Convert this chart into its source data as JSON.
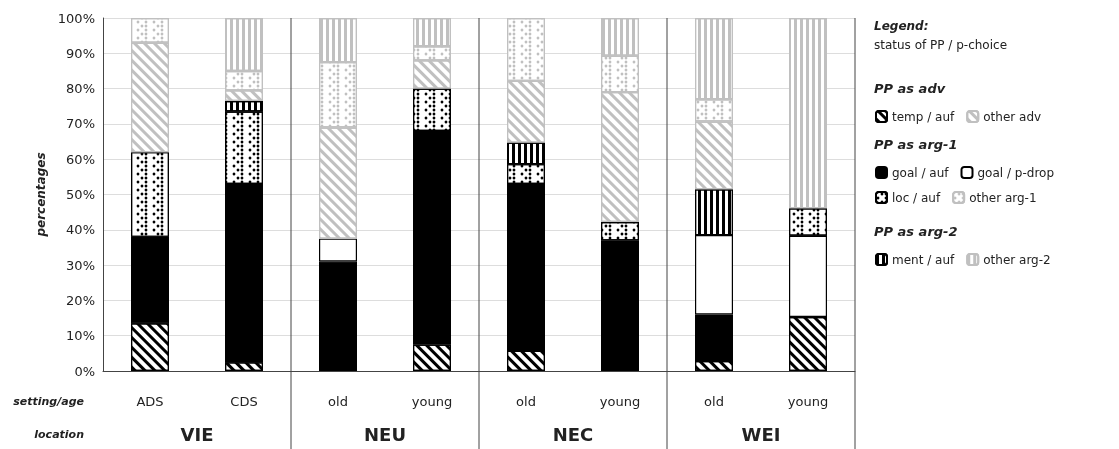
{
  "chart_data": {
    "type": "bar",
    "stacked": true,
    "categories": [
      "ADS",
      "CDS",
      "old",
      "young",
      "old",
      "young",
      "old",
      "young"
    ],
    "ylabel": "percentages",
    "legend_title": "Legend:",
    "annotations": [
      "setting/age",
      "location",
      "VIE",
      "NEU",
      "NEC",
      "WEI",
      "status of PP / p-choice",
      "PP as adv",
      "PP as arg-1",
      "PP as arg-2"
    ],
    "ylim": [
      0,
      100
    ],
    "yticks": [
      {
        "value": 0,
        "label": "0%"
      },
      {
        "value": 10,
        "label": "10%"
      },
      {
        "value": 20,
        "label": "20%"
      },
      {
        "value": 30,
        "label": "30%"
      },
      {
        "value": 40,
        "label": "40%"
      },
      {
        "value": 50,
        "label": "50%"
      },
      {
        "value": 60,
        "label": "60%"
      },
      {
        "value": 70,
        "label": "70%"
      },
      {
        "value": 80,
        "label": "80%"
      },
      {
        "value": 90,
        "label": "90%"
      },
      {
        "value": 100,
        "label": "100%"
      }
    ],
    "grid": "y",
    "legend": "right",
    "series": [
      {
        "name": "temp / auf",
        "color": "#000000",
        "values": [
          13.5,
          2.5,
          null,
          7.5,
          5.7,
          null,
          2.8,
          15.3
        ]
      },
      {
        "name": "goal / auf",
        "color": "#000000",
        "values": [
          24.5,
          50.5,
          31,
          60.5,
          47.3,
          37,
          13.2,
          null
        ]
      },
      {
        "name": "goal / p-drop",
        "color": "#ffffff",
        "values": [
          null,
          null,
          6.5,
          null,
          null,
          null,
          22.5,
          23
        ]
      },
      {
        "name": "loc / auf",
        "color": "#000000",
        "values": [
          24,
          20.5,
          null,
          12,
          5.6,
          5.2,
          null,
          7.8
        ]
      },
      {
        "name": "ment / auf",
        "color": "#000000",
        "values": [
          null,
          3,
          null,
          null,
          6.1,
          null,
          13,
          null
        ]
      },
      {
        "name": "other adv",
        "color": "#c0c0c0",
        "values": [
          31,
          3,
          31.5,
          8,
          17.5,
          36.8,
          19.2,
          null
        ]
      },
      {
        "name": "other arg-1",
        "color": "#c0c0c0",
        "values": [
          7,
          5.5,
          18.5,
          4,
          17.8,
          10.3,
          6.3,
          null
        ]
      },
      {
        "name": "other arg-2",
        "color": "#c0c0c0",
        "values": [
          null,
          15,
          12.5,
          8,
          null,
          10.7,
          23,
          53.9
        ]
      }
    ]
  }
}
